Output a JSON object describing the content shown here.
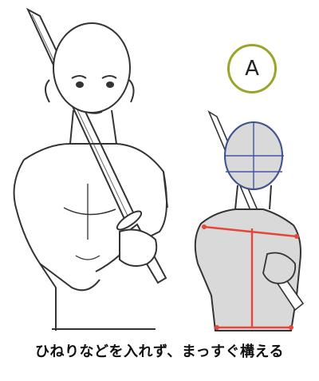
{
  "figure": {
    "badge_label": "A",
    "caption": "ひねりなどを入れず、まっすぐ構える"
  },
  "icons": {
    "left": "samurai-sketch-left",
    "right": "samurai-sketch-gray-analysis"
  },
  "colors": {
    "badge_border": "#9aa52a",
    "guide_red": "#e4473a",
    "guide_blue": "#3f55a6",
    "figure_fill": "#d9d9d9"
  }
}
